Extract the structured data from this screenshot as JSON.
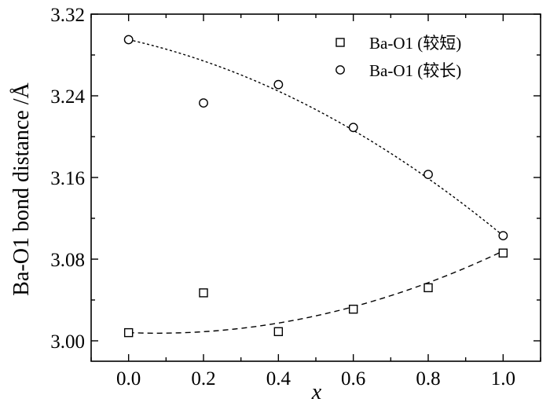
{
  "chart_data": {
    "type": "scatter",
    "title": "",
    "xlabel": "x",
    "ylabel": "Ba-O1 bond distance /Å",
    "xlim": [
      -0.1,
      1.1
    ],
    "ylim": [
      2.98,
      3.32
    ],
    "x_ticks": [
      0.0,
      0.2,
      0.4,
      0.6,
      0.8,
      1.0
    ],
    "x_tick_labels": [
      "0.0",
      "0.2",
      "0.4",
      "0.6",
      "0.8",
      "1.0"
    ],
    "y_ticks": [
      3.0,
      3.08,
      3.16,
      3.24,
      3.32
    ],
    "y_tick_labels": [
      "3.00",
      "3.08",
      "3.16",
      "3.24",
      "3.32"
    ],
    "grid": false,
    "legend_position": "top-right",
    "series": [
      {
        "name": "Ba-O1 (较短)",
        "marker": "square",
        "x": [
          0.0,
          0.2,
          0.4,
          0.6,
          0.8,
          1.0
        ],
        "y": [
          3.008,
          3.047,
          3.009,
          3.031,
          3.052,
          3.086
        ],
        "fit": {
          "style": "dashed",
          "x": [
            0.0,
            1.0
          ],
          "y0": 3.008,
          "y1": 3.088
        }
      },
      {
        "name": "Ba-O1 (较长)",
        "marker": "circle",
        "x": [
          0.0,
          0.2,
          0.4,
          0.6,
          0.8,
          1.0
        ],
        "y": [
          3.295,
          3.233,
          3.251,
          3.209,
          3.163,
          3.103
        ],
        "fit": {
          "style": "dotted",
          "x": [
            0.0,
            1.0
          ],
          "y0": 3.295,
          "y1": 3.103
        }
      }
    ]
  },
  "colors": {
    "ink": "#000000",
    "background": "#ffffff"
  }
}
